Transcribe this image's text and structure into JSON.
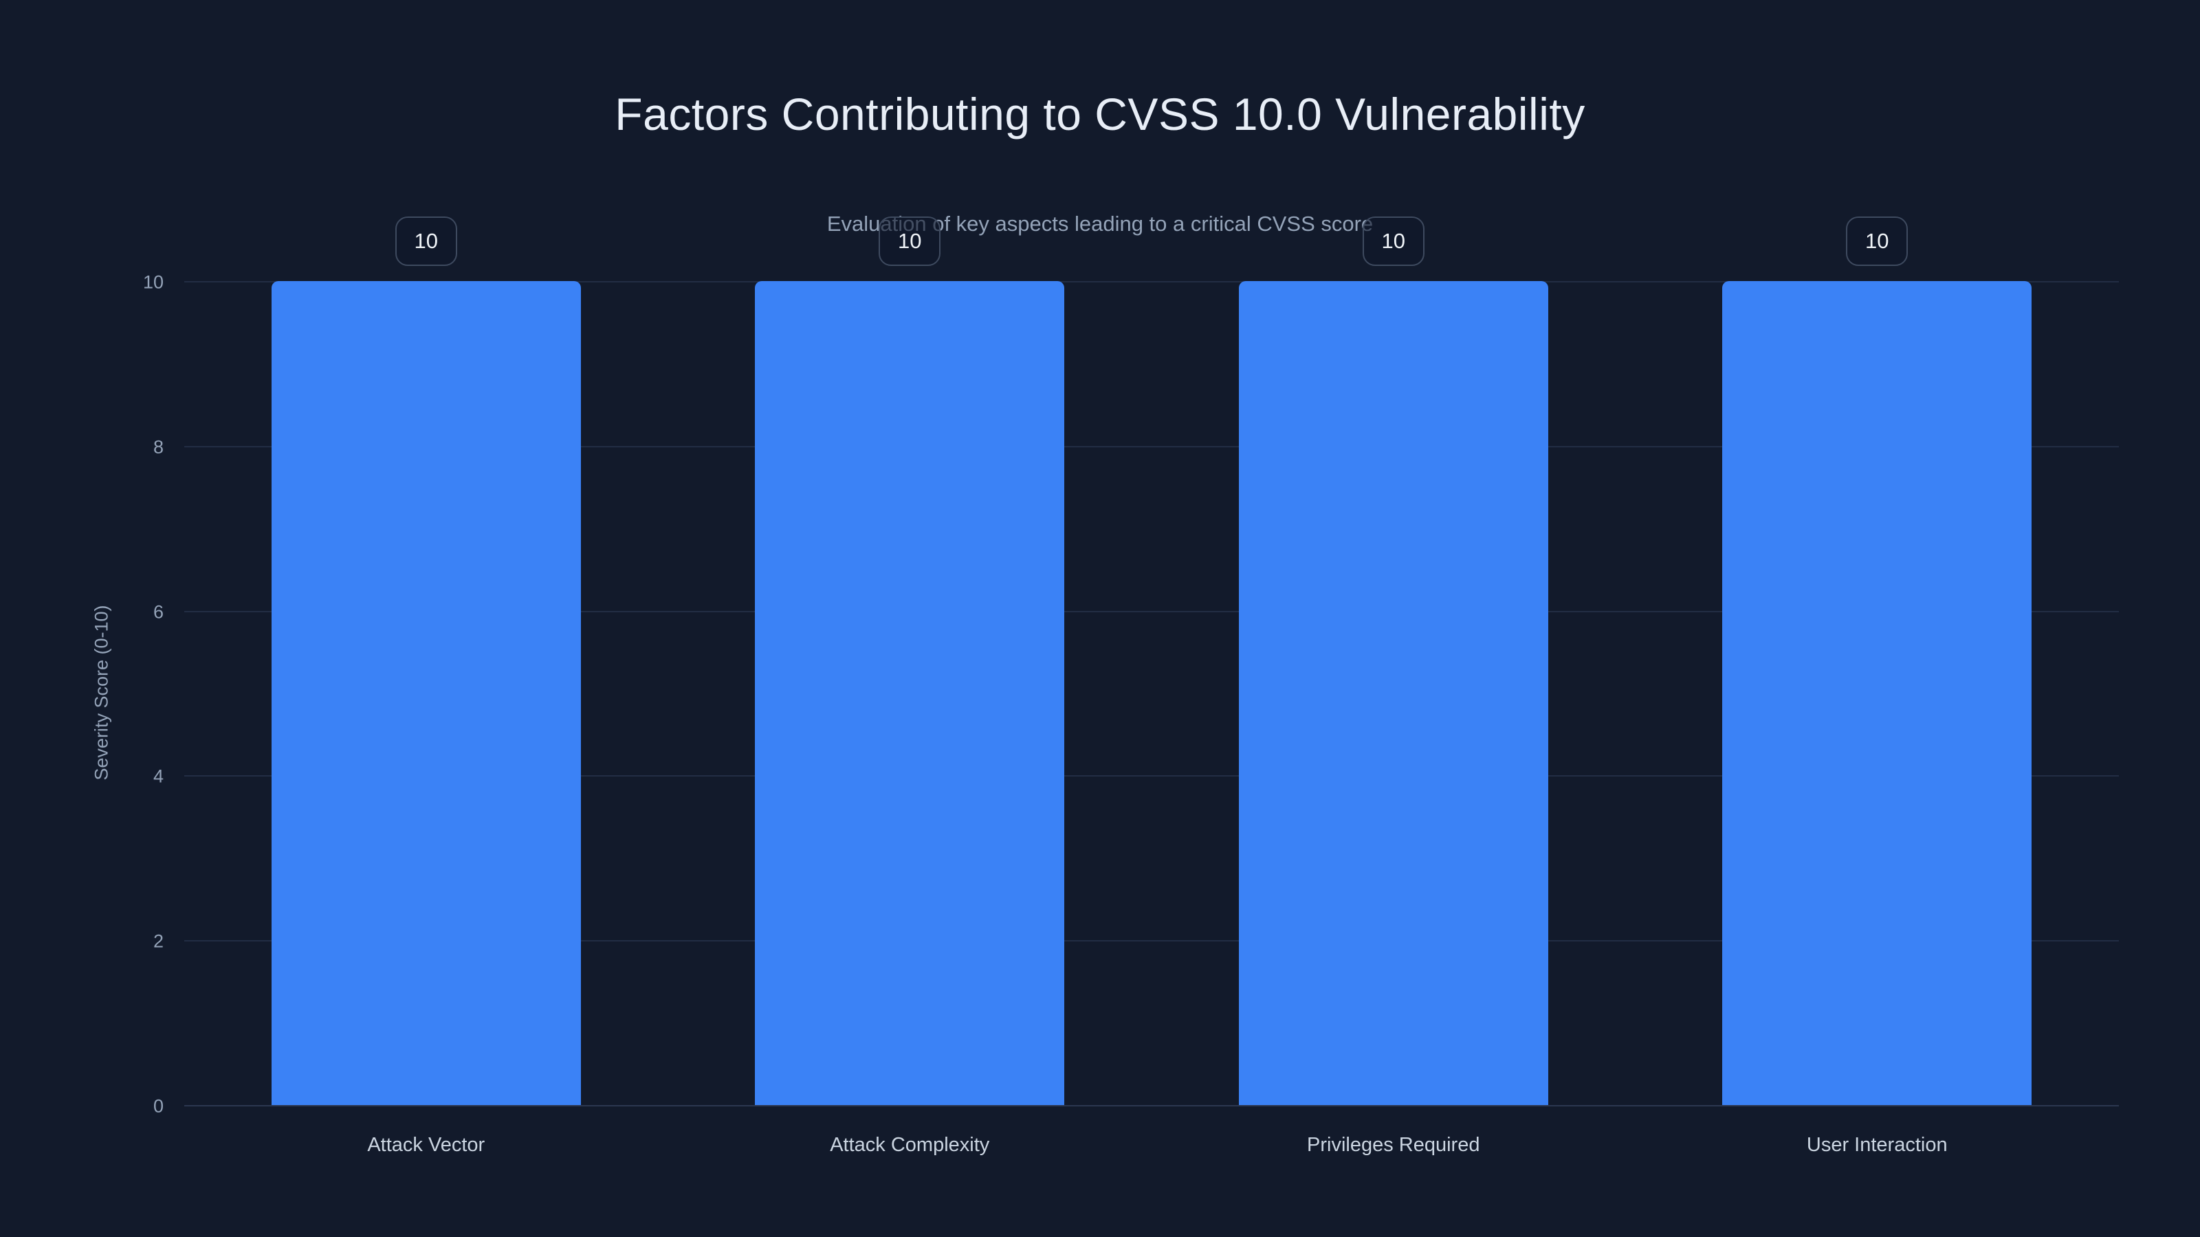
{
  "page": {
    "background_color": "#121a2b"
  },
  "chart_data": {
    "type": "bar",
    "title": "Factors Contributing to CVSS 10.0 Vulnerability",
    "subtitle": "Evaluation of key aspects leading to a critical CVSS score",
    "categories": [
      "Attack Vector",
      "Attack Complexity",
      "Privileges Required",
      "User Interaction"
    ],
    "values": [
      10,
      10,
      10,
      10
    ],
    "value_labels": [
      "10",
      "10",
      "10",
      "10"
    ],
    "xlabel": "",
    "ylabel": "Severity Score (0-10)",
    "ylim": [
      0,
      10
    ],
    "yticks": [
      0,
      2,
      4,
      6,
      8,
      10
    ],
    "grid": true,
    "legend": false,
    "colors": {
      "background": "#121a2b",
      "bar": "#3b82f6",
      "title": "#e8eef7",
      "subtitle": "#94a3b8",
      "tick": "#94a3b8",
      "category": "#cbd5e1",
      "grid": "#222d44",
      "axis_line": "#2c3750",
      "badge_border": "#3e4a5f",
      "badge_text": "#f1f5f9"
    }
  }
}
